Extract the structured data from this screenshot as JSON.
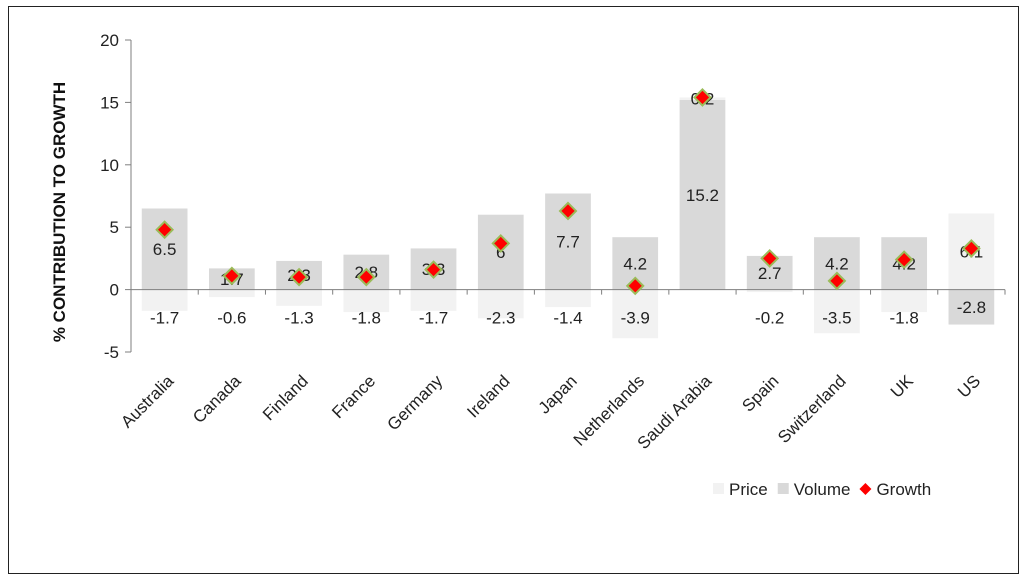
{
  "chart_data": {
    "type": "bar",
    "title": "",
    "xlabel": "",
    "ylabel": "% CONTRIBUTION TO GROWTH",
    "ylim": [
      -5,
      20
    ],
    "yticks": [
      20,
      15,
      10,
      5,
      0,
      -5
    ],
    "categories": [
      "Australia",
      "Canada",
      "Finland",
      "France",
      "Germany",
      "Ireland",
      "Japan",
      "Netherlands",
      "Saudi Arabia",
      "Spain",
      "Switzerland",
      "UK",
      "US"
    ],
    "series": [
      {
        "name": "Price",
        "kind": "bar",
        "color": "#f2f2f2",
        "values": [
          -1.7,
          -0.6,
          -1.3,
          -1.8,
          -1.7,
          -2.3,
          -1.4,
          -3.9,
          0.2,
          -0.2,
          -3.5,
          -1.8,
          6.1
        ]
      },
      {
        "name": "Volume",
        "kind": "bar",
        "color": "#d9d9d9",
        "values": [
          6.5,
          1.7,
          2.3,
          2.8,
          3.3,
          6.0,
          7.7,
          4.2,
          15.2,
          2.7,
          4.2,
          4.2,
          -2.8
        ]
      },
      {
        "name": "Growth",
        "kind": "marker",
        "color": "#ff0000",
        "edge_color": "#9bbb59",
        "values": [
          4.8,
          1.1,
          1.0,
          1.0,
          1.6,
          3.7,
          6.3,
          0.3,
          15.4,
          2.5,
          0.7,
          2.4,
          3.3
        ]
      }
    ],
    "data_labels": {
      "volume": [
        "6.5",
        "1.7",
        "2.3",
        "2.8",
        "3.3",
        "6",
        "7.7",
        "4.2",
        "15.2",
        "2.7",
        "4.2",
        "4.2",
        "-2.8"
      ],
      "price": [
        "-1.7",
        "-0.6",
        "-1.3",
        "-1.8",
        "-1.7",
        "-2.3",
        "-1.4",
        "-3.9",
        "0.2",
        "-0.2",
        "-3.5",
        "-1.8",
        "6.1"
      ]
    },
    "grid": false,
    "legend": {
      "position": "bottom-right",
      "entries": [
        "Price",
        "Volume",
        "Growth"
      ]
    }
  }
}
